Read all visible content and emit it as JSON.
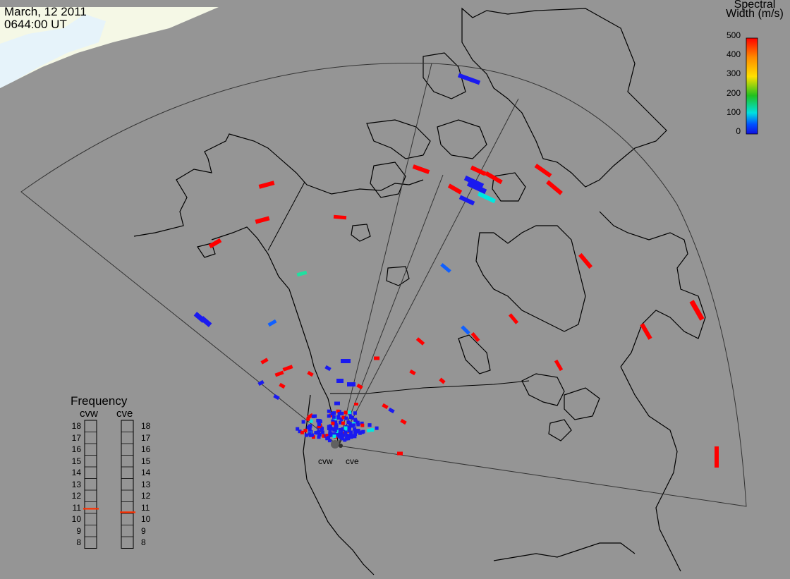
{
  "header": {
    "date": "March, 12 2011",
    "time": "0644:00 UT"
  },
  "colorbar": {
    "title_line1": "Spectral",
    "title_line2": "Width (m/s)",
    "ticks": [
      "500",
      "400",
      "300",
      "200",
      "100",
      "0"
    ],
    "colors": [
      "#ff0000",
      "#ff8a00",
      "#ffe000",
      "#20c020",
      "#00e0e0",
      "#0040ff",
      "#1010e0"
    ]
  },
  "frequency_panel": {
    "title": "Frequency",
    "radars": [
      "cvw",
      "cve"
    ],
    "ticks": [
      "18",
      "17",
      "16",
      "15",
      "14",
      "13",
      "12",
      "11",
      "10",
      "9",
      "8"
    ],
    "cvw_mhz": 10.9,
    "cve_mhz": 10.6,
    "marker_color": "#ff3000"
  },
  "sites": {
    "west": "cvw",
    "east": "cve"
  },
  "colors": {
    "background": "#959595",
    "land_outline": "#000000",
    "fov": "#3a3a3a",
    "daylight": "#f5f8e8",
    "daylight_sea": "#e8f4fa"
  }
}
